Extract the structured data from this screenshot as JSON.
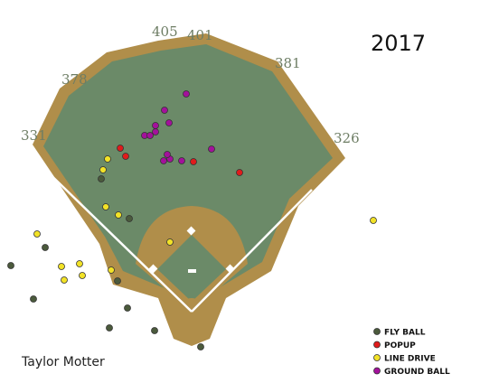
{
  "chart_data": {
    "type": "scatter",
    "title": "2017",
    "subtitle": "Taylor Motter",
    "xlim": [
      0,
      552
    ],
    "ylim": [
      424,
      0
    ],
    "fence_labels": [
      405,
      401,
      381,
      378,
      331,
      326
    ],
    "series": [
      {
        "name": "FLY BALL",
        "color": "#4b5a3c",
        "x": [
          121,
          171,
          222,
          141,
          37,
          12,
          130,
          50,
          143,
          112
        ],
        "y": [
          61,
          58,
          40,
          83,
          93,
          130,
          113,
          150,
          182,
          226
        ]
      },
      {
        "name": "POPUP",
        "color": "#e01b1b",
        "x": [
          265,
          214,
          139,
          133
        ],
        "y": [
          233,
          245,
          251,
          260
        ]
      },
      {
        "name": "LINE DRIVE",
        "color": "#f2e227",
        "x": [
          71,
          68,
          91,
          88,
          123,
          188,
          41,
          413,
          131,
          117,
          114,
          119
        ],
        "y": [
          114,
          129,
          119,
          132,
          125,
          156,
          165,
          180,
          186,
          195,
          236,
          248
        ]
      },
      {
        "name": "GROUND BALL",
        "color": "#a3119b",
        "x": [
          181,
          188,
          185,
          201,
          234,
          160,
          166,
          172,
          172,
          187,
          182,
          206
        ],
        "y": [
          246,
          248,
          253,
          246,
          259,
          274,
          274,
          278,
          285,
          288,
          302,
          320
        ]
      }
    ]
  }
}
